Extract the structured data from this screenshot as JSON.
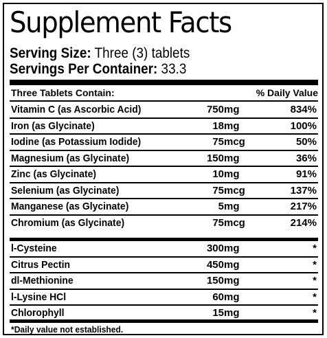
{
  "title": "Supplement Facts",
  "serving": {
    "size_label": "Serving Size:",
    "size_value": " Three (3) tablets",
    "per_container_label": "Servings Per Container:",
    "per_container_value": " 33.3"
  },
  "header": {
    "left": "Three Tablets Contain:",
    "right": "% Daily Value"
  },
  "nutrients": [
    {
      "name": "Vitamin C (as Ascorbic Acid)",
      "amount": "750",
      "unit": "mg",
      "dv": "834%"
    },
    {
      "name": "Iron (as Glycinate)",
      "amount": "18",
      "unit": "mg",
      "dv": "100%"
    },
    {
      "name": "Iodine (as Potassium Iodide)",
      "amount": "75",
      "unit": "mcg",
      "dv": "50%"
    },
    {
      "name": "Magnesium (as Glycinate)",
      "amount": "150",
      "unit": "mg",
      "dv": "36%"
    },
    {
      "name": "Zinc (as Glycinate)",
      "amount": "10",
      "unit": "mg",
      "dv": "91%"
    },
    {
      "name": "Selenium (as Glycinate)",
      "amount": "75",
      "unit": "mcg",
      "dv": "137%"
    },
    {
      "name": "Manganese (as Glycinate)",
      "amount": "5",
      "unit": "mg",
      "dv": "217%"
    },
    {
      "name": "Chromium (as Glycinate)",
      "amount": "75",
      "unit": "mcg",
      "dv": "214%"
    }
  ],
  "other": [
    {
      "name": "l-Cysteine",
      "amount": "300",
      "unit": "mg",
      "dv": "*"
    },
    {
      "name": "Citrus Pectin",
      "amount": "450",
      "unit": "mg",
      "dv": "*"
    },
    {
      "name": "dl-Methionine",
      "amount": "150",
      "unit": "mg",
      "dv": "*"
    },
    {
      "name": "l-Lysine HCl",
      "amount": "60",
      "unit": "mg",
      "dv": "*"
    },
    {
      "name": "Chlorophyll",
      "amount": "15",
      "unit": "mg",
      "dv": "*"
    }
  ],
  "footnote": "*Daily value not established."
}
